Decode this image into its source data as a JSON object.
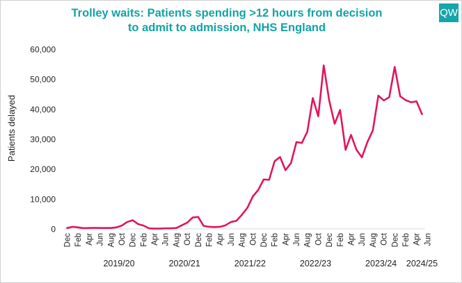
{
  "header": {
    "title_line1": "Trolley waits: Patients spending >12 hours from decision",
    "title_line2": "to admit to admission, NHS England",
    "logo_text": "QW"
  },
  "colors": {
    "title": "#13a3a5",
    "logo_bg": "#16a5a8",
    "line": "#e0165a"
  },
  "chart_data": {
    "type": "line",
    "title": "Trolley waits: Patients spending >12 hours from decision to admit to admission, NHS England",
    "xlabel": "",
    "ylabel": "Patients delayed",
    "ylim": [
      0,
      60000
    ],
    "yticks": [
      0,
      10000,
      20000,
      30000,
      40000,
      50000,
      60000
    ],
    "ytick_labels": [
      "0",
      "10,000",
      "20,000",
      "30,000",
      "40,000",
      "50,000",
      "60,000"
    ],
    "x_month_labels": [
      "Dec",
      "Feb",
      "Apr",
      "Jun",
      "Aug",
      "Oct",
      "Dec",
      "Feb",
      "Apr",
      "Jun",
      "Aug",
      "Oct",
      "Dec",
      "Feb",
      "Apr",
      "Jun",
      "Aug",
      "Oct",
      "Dec",
      "Feb",
      "Apr",
      "Jun",
      "Aug",
      "Oct",
      "Dec",
      "Feb",
      "Apr",
      "Jun",
      "Aug",
      "Oct",
      "Dec",
      "Feb",
      "Apr",
      "Jun"
    ],
    "x_month_label_every": 2,
    "year_groups": [
      {
        "label": "2019/20",
        "from_index": 4,
        "to_index": 15
      },
      {
        "label": "2020/21",
        "from_index": 16,
        "to_index": 27
      },
      {
        "label": "2021/22",
        "from_index": 28,
        "to_index": 39
      },
      {
        "label": "2022/23",
        "from_index": 40,
        "to_index": 51
      },
      {
        "label": "2023/24",
        "from_index": 52,
        "to_index": 63
      },
      {
        "label": "2024/25",
        "from_index": 64,
        "to_index": 66
      }
    ],
    "series": [
      {
        "name": "Patients delayed",
        "values": [
          300,
          700,
          500,
          250,
          300,
          350,
          300,
          300,
          300,
          500,
          1100,
          2300,
          2900,
          1600,
          1100,
          200,
          100,
          100,
          200,
          200,
          300,
          1200,
          2100,
          3800,
          4000,
          1000,
          700,
          600,
          700,
          1200,
          2300,
          2700,
          4700,
          7000,
          10800,
          13000,
          16500,
          16400,
          22600,
          24000,
          19600,
          22000,
          29000,
          28700,
          32500,
          43700,
          37600,
          54600,
          42900,
          35100,
          39700,
          26400,
          31400,
          26400,
          23900,
          29000,
          32900,
          44500,
          42900,
          44000,
          54100,
          44300,
          43000,
          42300,
          42600,
          38300
        ]
      }
    ]
  }
}
